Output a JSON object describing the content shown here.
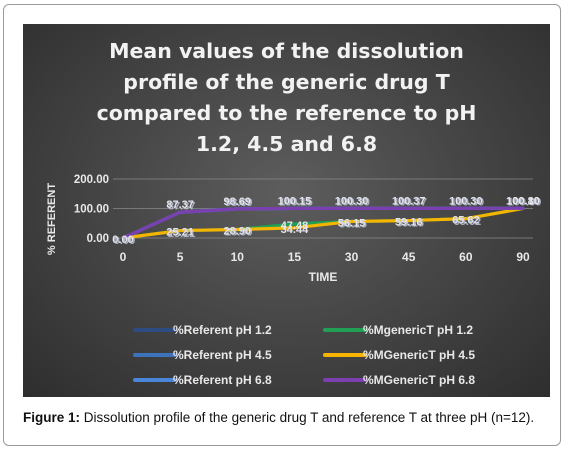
{
  "chart_data": {
    "type": "line",
    "title_lines": [
      "Mean values of the dissolution",
      "profile of the generic drug T",
      "compared to the reference to pH",
      "1.2, 4.5 and 6.8"
    ],
    "xlabel": "TIME",
    "ylabel": "% REFERENT",
    "categories": [
      "0",
      "5",
      "10",
      "15",
      "30",
      "45",
      "60",
      "90"
    ],
    "yticks": [
      "0.00",
      "100.00",
      "200.00"
    ],
    "ylim": [
      0,
      200
    ],
    "grid": true,
    "legend_position": "bottom",
    "series": [
      {
        "name": "%Referent pH 1.2",
        "color": "#2e4b82",
        "values": [
          0,
          87.37,
          98.69,
          100.15,
          100.3,
          100.37,
          100.3,
          100.8
        ]
      },
      {
        "name": "%MgenericT pH 1.2",
        "color": "#21a055",
        "values": [
          0,
          25.21,
          28.9,
          47.48,
          56.15,
          59.16,
          65.62,
          100.1
        ]
      },
      {
        "name": "%Referent pH 4.5",
        "color": "#3d73ba",
        "values": [
          0,
          87.37,
          98.69,
          100.15,
          100.3,
          100.37,
          100.3,
          100.9
        ]
      },
      {
        "name": "%MGenericT pH 4.5",
        "color": "#f5b400",
        "values": [
          0,
          25.21,
          28.9,
          34.44,
          56.15,
          59.16,
          65.62,
          100.2
        ]
      },
      {
        "name": "%Referent pH 6.8",
        "color": "#4a86d8",
        "values": [
          0,
          87.37,
          98.69,
          100.15,
          100.3,
          100.37,
          100.3,
          100.8
        ]
      },
      {
        "name": "%MGenericT pH 6.8",
        "color": "#7b3fb0",
        "values": [
          0,
          87.37,
          98.69,
          100.15,
          100.3,
          100.37,
          100.3,
          100.8
        ]
      }
    ],
    "data_labels": [
      {
        "category": "0",
        "value": 0,
        "text": "0.00"
      },
      {
        "category": "0",
        "value": 0,
        "text": "0.00"
      },
      {
        "category": "5",
        "value": 87.37,
        "text": "87.37"
      },
      {
        "category": "5",
        "value": 87.37,
        "text": "87.37"
      },
      {
        "category": "5",
        "value": 25.21,
        "text": "25.21"
      },
      {
        "category": "5",
        "value": 25.21,
        "text": "25.21"
      },
      {
        "category": "10",
        "value": 98.69,
        "text": "98.69"
      },
      {
        "category": "10",
        "value": 98.69,
        "text": "98.69"
      },
      {
        "category": "10",
        "value": 28.9,
        "text": "28.90"
      },
      {
        "category": "10",
        "value": 28.9,
        "text": "28.90"
      },
      {
        "category": "15",
        "value": 100.15,
        "text": "100.15"
      },
      {
        "category": "15",
        "value": 100.15,
        "text": "100.15"
      },
      {
        "category": "15",
        "value": 47.48,
        "text": "47.48"
      },
      {
        "category": "15",
        "value": 34.44,
        "text": "34.44"
      },
      {
        "category": "30",
        "value": 100.3,
        "text": "100.30"
      },
      {
        "category": "30",
        "value": 100.3,
        "text": "100.30"
      },
      {
        "category": "30",
        "value": 56.15,
        "text": "56.15"
      },
      {
        "category": "30",
        "value": 56.15,
        "text": "56.15"
      },
      {
        "category": "45",
        "value": 100.37,
        "text": "100.37"
      },
      {
        "category": "45",
        "value": 100.37,
        "text": "100.37"
      },
      {
        "category": "45",
        "value": 59.16,
        "text": "59.16"
      },
      {
        "category": "45",
        "value": 59.16,
        "text": "59.16"
      },
      {
        "category": "60",
        "value": 100.3,
        "text": "100.30"
      },
      {
        "category": "60",
        "value": 100.3,
        "text": "100.30"
      },
      {
        "category": "60",
        "value": 65.62,
        "text": "65.62"
      },
      {
        "category": "60",
        "value": 65.62,
        "text": "65.62"
      },
      {
        "category": "90",
        "value": 100.8,
        "text": "100.80"
      },
      {
        "category": "90",
        "value": 100.8,
        "text": "100.80"
      },
      {
        "category": "90",
        "value": 100.1,
        "text": "100.10"
      }
    ]
  },
  "figure": {
    "label": "Figure 1:",
    "caption": " Dissolution profile of the generic drug T and reference T at three pH (n=12)."
  }
}
